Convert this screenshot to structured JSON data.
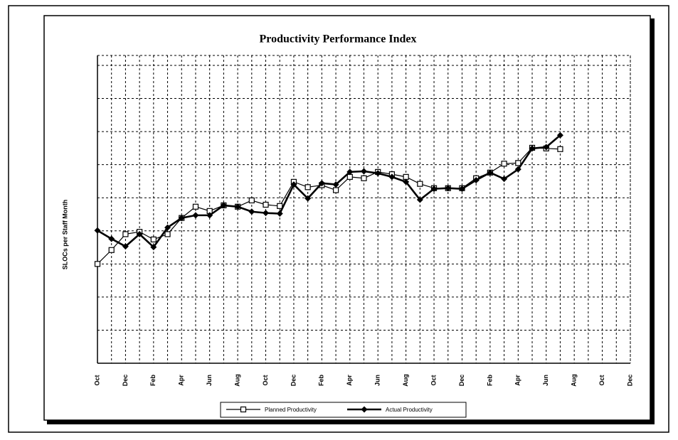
{
  "chart_data": {
    "type": "line",
    "title": "Productivity Performance Index",
    "y_label": "SLOCs per Staff Month",
    "categories": [
      "Oct",
      null,
      "Dec",
      null,
      "Feb",
      null,
      "Apr",
      null,
      "Jun",
      null,
      "Aug",
      null,
      "Oct",
      null,
      "Dec",
      null,
      "Feb",
      null,
      "Apr",
      null,
      "Jun",
      null,
      "Aug",
      null,
      "Oct",
      null,
      "Dec",
      null,
      "Feb",
      null,
      "Apr",
      null,
      "Jun",
      null,
      "Aug",
      null,
      "Oct",
      null,
      "Dec"
    ],
    "series": [
      {
        "name": "Planned Productivity",
        "color": "#000000",
        "marker": "square",
        "values": [
          3.0,
          3.42,
          3.9,
          3.97,
          3.74,
          3.9,
          4.39,
          4.73,
          4.6,
          4.77,
          4.73,
          4.92,
          4.79,
          4.75,
          5.48,
          5.32,
          5.38,
          5.23,
          5.63,
          5.59,
          5.78,
          5.71,
          5.63,
          5.42,
          5.29,
          5.29,
          5.29,
          5.59,
          5.76,
          6.03,
          6.05,
          6.51,
          6.49,
          6.47,
          null,
          null,
          null,
          null,
          null
        ]
      },
      {
        "name": "Actual Productivity",
        "color": "#000000",
        "marker": "diamond",
        "values": [
          4.01,
          3.76,
          3.53,
          3.9,
          3.51,
          4.1,
          4.39,
          4.47,
          4.47,
          4.77,
          4.73,
          4.58,
          4.54,
          4.52,
          5.4,
          4.98,
          5.44,
          5.4,
          5.78,
          5.8,
          5.74,
          5.63,
          5.48,
          4.94,
          5.27,
          5.29,
          5.27,
          5.53,
          5.76,
          5.57,
          5.86,
          6.49,
          6.53,
          6.89,
          null,
          null,
          null,
          null,
          null
        ]
      }
    ],
    "ylim": [
      0,
      9.3
    ],
    "yticks": [
      0,
      1,
      2,
      3,
      4,
      5,
      6,
      7,
      8,
      9
    ],
    "grid": true,
    "legend": "bottom"
  }
}
